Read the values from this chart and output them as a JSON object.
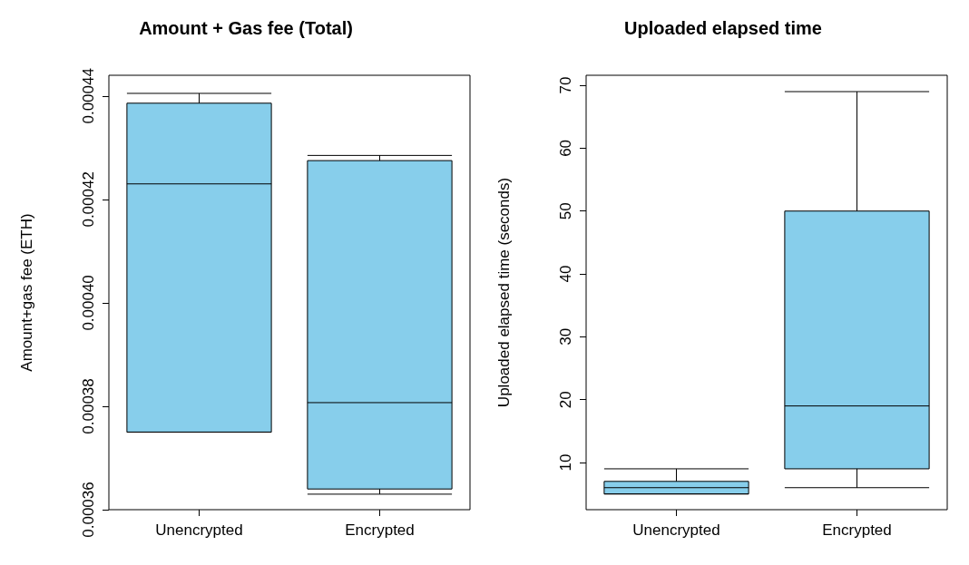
{
  "chart_data": [
    {
      "type": "box",
      "title": "Amount + Gas fee (Total)",
      "ylabel": "Amount+gas fee (ETH)",
      "categories": [
        "Unencrypted",
        "Encrypted"
      ],
      "series": [
        {
          "color": "#87ceeb",
          "boxes": [
            {
              "low": 0.000375,
              "q1": 0.000375,
              "median": 0.000423,
              "q3": 0.0004386,
              "high": 0.0004405
            },
            {
              "low": 0.000363,
              "q1": 0.000364,
              "median": 0.0003807,
              "q3": 0.0004275,
              "high": 0.0004285
            }
          ]
        }
      ],
      "ylim": [
        0.00036,
        0.000444
      ],
      "yticks": [
        0.00036,
        0.00038,
        {
          "value": 0.0004,
          "label": "0.00040"
        },
        0.00042,
        0.00044
      ]
    },
    {
      "type": "box",
      "title": "Uploaded elapsed time",
      "ylabel": "Uploaded elapsed time (seconds)",
      "categories": [
        "Unencrypted",
        "Encrypted"
      ],
      "series": [
        {
          "color": "#87ceeb",
          "boxes": [
            {
              "low": 5,
              "q1": 5,
              "median": 6,
              "q3": 7,
              "high": 9
            },
            {
              "low": 6,
              "q1": 9,
              "median": 19,
              "q3": 50,
              "high": 69
            }
          ]
        }
      ],
      "ylim": [
        2.5,
        71.6
      ],
      "yticks": [
        10,
        20,
        30,
        40,
        50,
        60,
        70
      ]
    }
  ]
}
